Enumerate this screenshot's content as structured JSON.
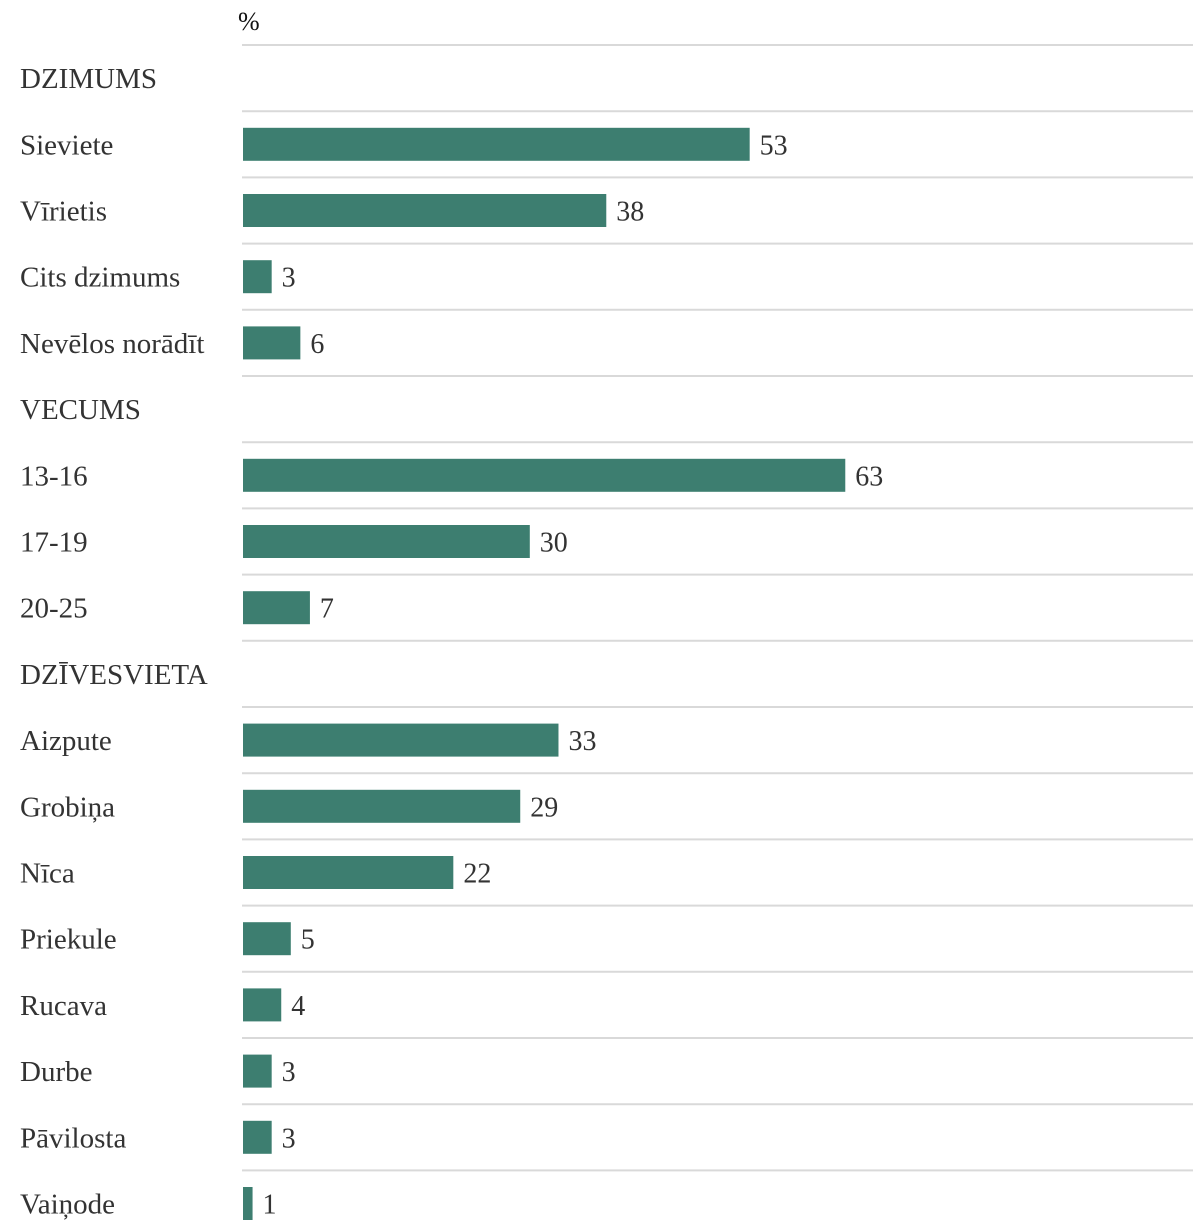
{
  "chart_data": {
    "type": "bar",
    "orientation": "horizontal",
    "unit_label": "%",
    "bar_color": "#3d7e70",
    "text_color": "#333333",
    "rule_color": "#d9d9d9",
    "value_max": 100,
    "grid": false,
    "groups": [
      {
        "title": "DZIMUMS",
        "categories": [
          "Sieviete",
          "Vīrietis",
          "Cits dzimums",
          "Nevēlos norādīt"
        ],
        "values": [
          53,
          38,
          3,
          6
        ]
      },
      {
        "title": "VECUMS",
        "categories": [
          "13-16",
          "17-19",
          "20-25"
        ],
        "values": [
          63,
          30,
          7
        ]
      },
      {
        "title": "DZĪVESVIETA",
        "categories": [
          "Aizpute",
          "Grobiņa",
          "Nīca",
          "Priekule",
          "Rucava",
          "Durbe",
          "Pāvilosta",
          "Vaiņode"
        ],
        "values": [
          33,
          29,
          22,
          5,
          4,
          3,
          3,
          1
        ]
      }
    ]
  }
}
